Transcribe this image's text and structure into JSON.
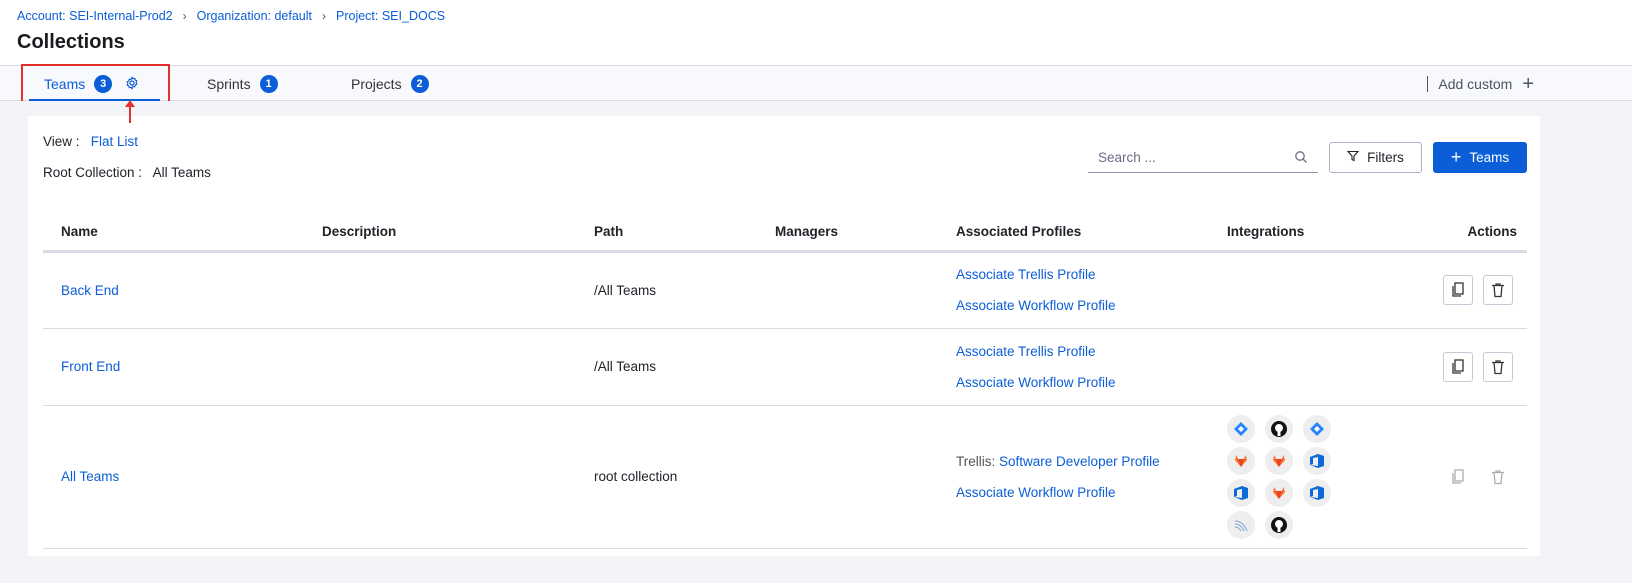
{
  "breadcrumb": [
    "Account: SEI-Internal-Prod2",
    "Organization: default",
    "Project: SEI_DOCS"
  ],
  "title": "Collections",
  "tabs": [
    {
      "label": "Teams",
      "count": "3",
      "active": true
    },
    {
      "label": "Sprints",
      "count": "1"
    },
    {
      "label": "Projects",
      "count": "2"
    }
  ],
  "add_custom": "Add custom",
  "view_label": "View :",
  "view_value": "Flat List",
  "root_label": "Root Collection :",
  "root_value": "All Teams",
  "search_placeholder": "Search ...",
  "filters_label": "Filters",
  "add_label": "Teams",
  "columns": [
    "Name",
    "Description",
    "Path",
    "Managers",
    "Associated Profiles",
    "Integrations",
    "Actions"
  ],
  "rows": [
    {
      "name": "Back End",
      "path": "/All Teams",
      "profile1": "Associate Trellis Profile",
      "profile2": "Associate Workflow Profile"
    },
    {
      "name": "Front End",
      "path": "/All Teams",
      "profile1": "Associate Trellis Profile",
      "profile2": "Associate Workflow Profile"
    },
    {
      "name": "All Teams",
      "path": "root collection",
      "trellis_label": "Trellis:",
      "profile1": "Software Developer Profile",
      "profile2": "Associate Workflow Profile",
      "integrations": [
        "jira",
        "github",
        "jira",
        "gitlab",
        "gitlab",
        "azure-devops",
        "azure-devops",
        "gitlab",
        "azure-devops",
        "harness",
        "github"
      ]
    }
  ],
  "colors": {
    "accent": "#0b5ed7",
    "highlight": "#e3302f"
  }
}
